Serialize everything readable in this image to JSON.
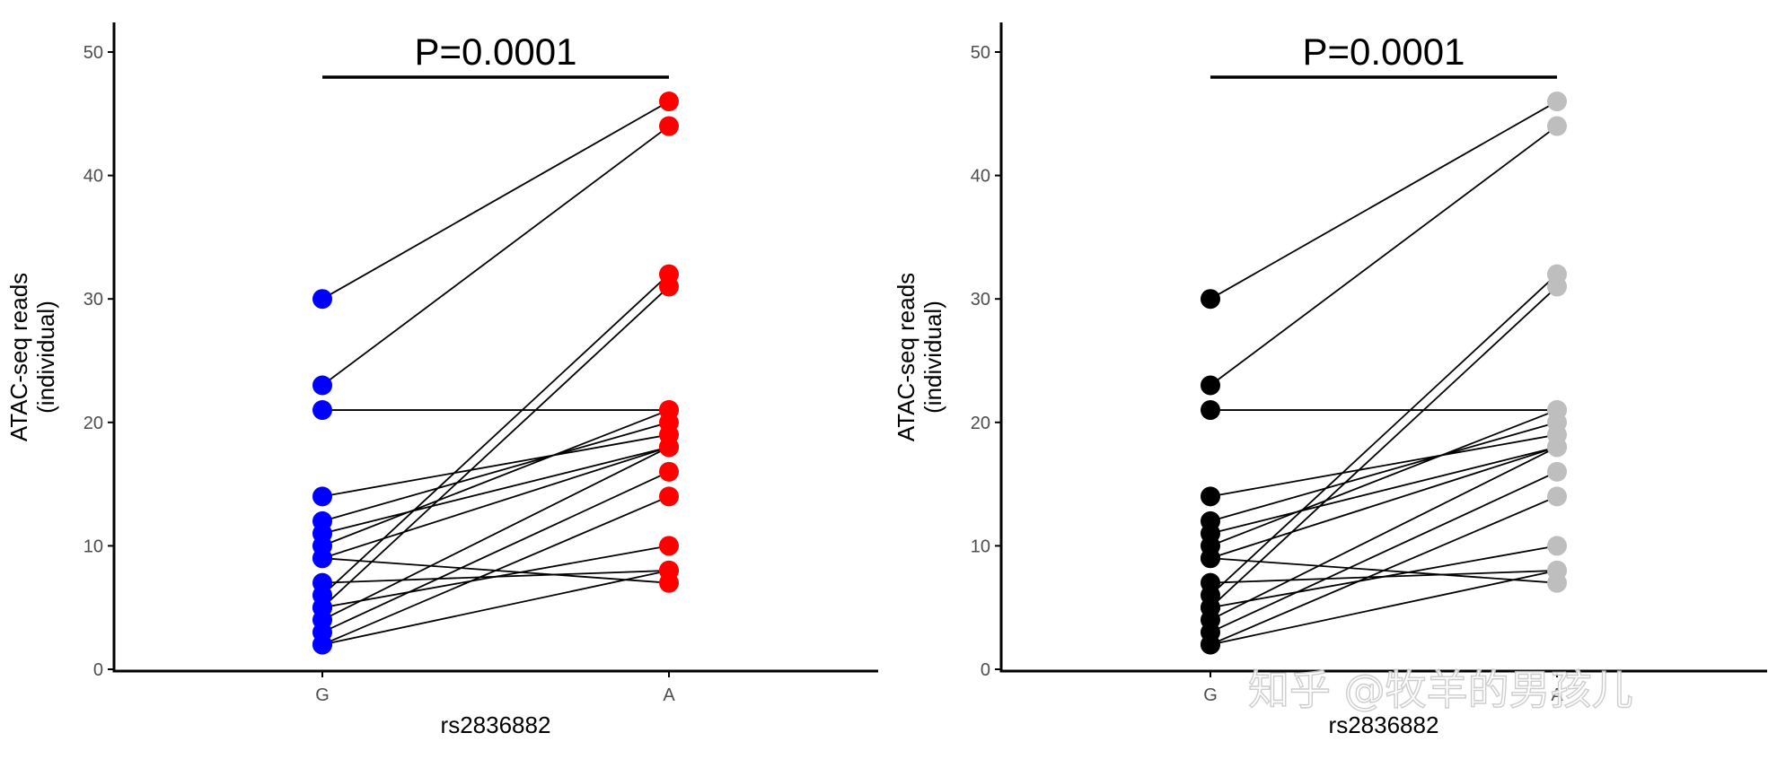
{
  "watermark": "知乎 @牧羊的男孩儿",
  "chart_data": [
    {
      "type": "line",
      "subtype": "paired-dot",
      "panel": "left",
      "annotation": "P=0.0001",
      "xlabel": "rs2836882",
      "ylabel_lines": [
        "ATAC-seq reads",
        "(individual)"
      ],
      "categories": [
        "G",
        "A"
      ],
      "ylim": [
        0,
        50
      ],
      "yticks": [
        0,
        10,
        20,
        30,
        40,
        50
      ],
      "grid": false,
      "colors": {
        "G": "#0000ff",
        "A": "#ff0000",
        "line": "#000000"
      },
      "pairs": [
        [
          30,
          46
        ],
        [
          23,
          44
        ],
        [
          21,
          21
        ],
        [
          14,
          19
        ],
        [
          12,
          20
        ],
        [
          11,
          18
        ],
        [
          10,
          21
        ],
        [
          9,
          7
        ],
        [
          9,
          18
        ],
        [
          7,
          8
        ],
        [
          6,
          32
        ],
        [
          5,
          31
        ],
        [
          5,
          10
        ],
        [
          4,
          18
        ],
        [
          3,
          16
        ],
        [
          2,
          14
        ],
        [
          2,
          8
        ]
      ]
    },
    {
      "type": "line",
      "subtype": "paired-dot",
      "panel": "right",
      "annotation": "P=0.0001",
      "xlabel": "rs2836882",
      "ylabel_lines": [
        "ATAC-seq reads",
        "(individual)"
      ],
      "categories": [
        "G",
        "A"
      ],
      "ylim": [
        0,
        50
      ],
      "yticks": [
        0,
        10,
        20,
        30,
        40,
        50
      ],
      "grid": false,
      "colors": {
        "G": "#000000",
        "A": "#bebebe",
        "line": "#000000"
      },
      "pairs": [
        [
          30,
          46
        ],
        [
          23,
          44
        ],
        [
          21,
          21
        ],
        [
          14,
          19
        ],
        [
          12,
          20
        ],
        [
          11,
          18
        ],
        [
          10,
          21
        ],
        [
          9,
          7
        ],
        [
          9,
          18
        ],
        [
          7,
          8
        ],
        [
          6,
          32
        ],
        [
          5,
          31
        ],
        [
          5,
          10
        ],
        [
          4,
          18
        ],
        [
          3,
          16
        ],
        [
          2,
          14
        ],
        [
          2,
          8
        ]
      ]
    }
  ]
}
